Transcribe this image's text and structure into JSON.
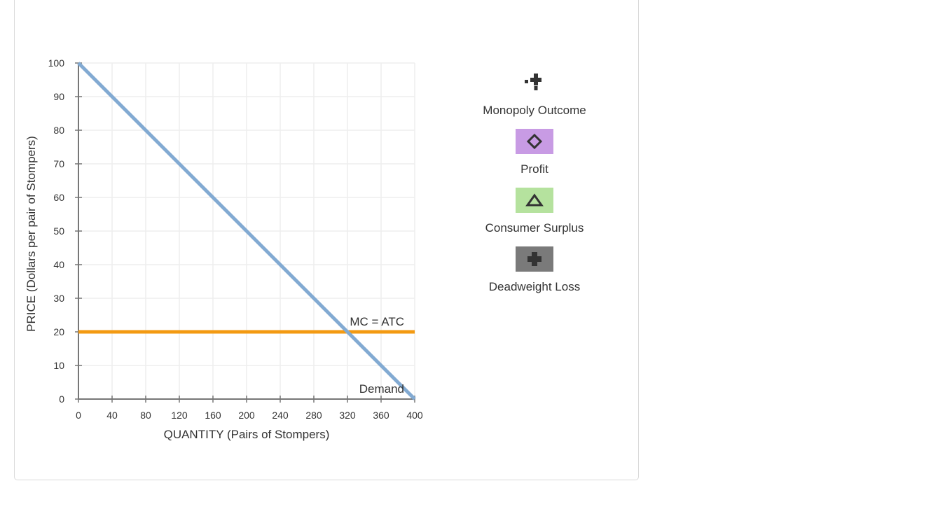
{
  "chart_data": {
    "type": "line",
    "title": "",
    "xlabel": "QUANTITY (Pairs of Stompers)",
    "ylabel": "PRICE (Dollars per pair of Stompers)",
    "xlim": [
      0,
      400
    ],
    "ylim": [
      0,
      100
    ],
    "x_ticks": [
      0,
      40,
      80,
      120,
      160,
      200,
      240,
      280,
      320,
      360,
      400
    ],
    "y_ticks": [
      0,
      10,
      20,
      30,
      40,
      50,
      60,
      70,
      80,
      90,
      100
    ],
    "grid": true,
    "series": [
      {
        "name": "Demand",
        "color": "#82aad2",
        "points": [
          [
            0,
            100
          ],
          [
            400,
            0
          ]
        ]
      },
      {
        "name": "MC = ATC",
        "color": "#f39a12",
        "points": [
          [
            0,
            20
          ],
          [
            400,
            20
          ]
        ]
      }
    ]
  },
  "palette": {
    "items": [
      {
        "key": "monopoly",
        "label": "Monopoly Outcome",
        "icon": "plus-marker-icon",
        "bg": "",
        "color": "#333333"
      },
      {
        "key": "profit",
        "label": "Profit",
        "icon": "diamond-icon",
        "bg": "#c89be4",
        "color": "#333333"
      },
      {
        "key": "consumer",
        "label": "Consumer Surplus",
        "icon": "triangle-icon",
        "bg": "#b5e29e",
        "color": "#333333"
      },
      {
        "key": "deadweight",
        "label": "Deadweight Loss",
        "icon": "cross-icon",
        "bg": "#7a7a7a",
        "color": "#333333"
      }
    ]
  }
}
